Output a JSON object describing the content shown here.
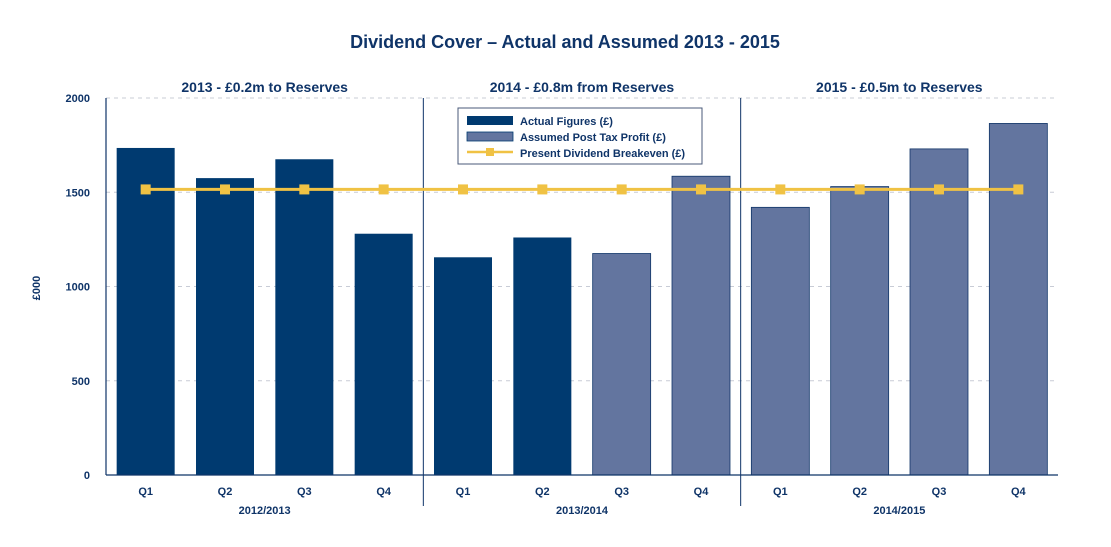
{
  "chart_data": {
    "type": "bar",
    "title": "Dividend Cover – Actual and Assumed 2013 - 2015",
    "ylabel": "£000",
    "ylim": [
      0,
      2000
    ],
    "yticks": [
      0,
      500,
      1000,
      1500,
      2000
    ],
    "grid": true,
    "legend_position": "top-center",
    "groups": [
      {
        "title": "2013 - £0.2m to Reserves",
        "year_label": "2012/2013",
        "quarters": [
          "Q1",
          "Q2",
          "Q3",
          "Q4"
        ]
      },
      {
        "title": "2014 - £0.8m from Reserves",
        "year_label": "2013/2014",
        "quarters": [
          "Q1",
          "Q2",
          "Q3",
          "Q4"
        ]
      },
      {
        "title": "2015 - £0.5m to Reserves",
        "year_label": "2014/2015",
        "quarters": [
          "Q1",
          "Q2",
          "Q3",
          "Q4"
        ]
      }
    ],
    "series": [
      {
        "name": "Actual Figures (£)",
        "color": "#003a70",
        "values": [
          1735,
          1575,
          1675,
          1280,
          1155,
          1260,
          null,
          null,
          null,
          null,
          null,
          null
        ]
      },
      {
        "name": "Assumed Post Tax Profit (£)",
        "color": "#63759f",
        "values": [
          null,
          null,
          null,
          null,
          null,
          null,
          1175,
          1585,
          1420,
          1530,
          1730,
          1865
        ]
      },
      {
        "name": "Present Dividend Breakeven (£)",
        "type": "line",
        "color": "#f0c244",
        "values": [
          1515,
          1515,
          1515,
          1515,
          1515,
          1515,
          1515,
          1515,
          1515,
          1515,
          1515,
          1515
        ]
      }
    ]
  }
}
